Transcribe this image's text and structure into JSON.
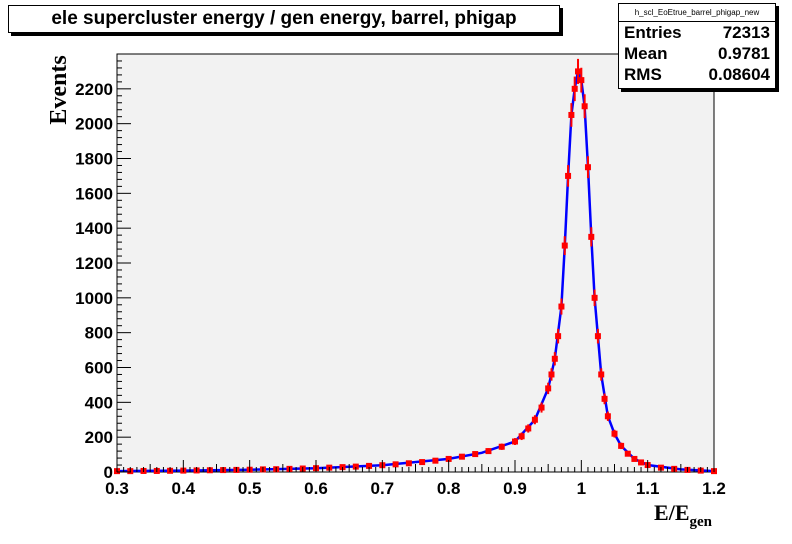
{
  "chart_data": {
    "type": "scatter",
    "title": "ele supercluster energy / gen energy, barrel, phigap",
    "xlabel": "E/E",
    "xlabel_sub": "gen",
    "ylabel": "Events",
    "xlim": [
      0.3,
      1.2
    ],
    "ylim": [
      0,
      2400
    ],
    "xticks": [
      "0.3",
      "0.4",
      "0.5",
      "0.6",
      "0.7",
      "0.8",
      "0.9",
      "1",
      "1.1",
      "1.2"
    ],
    "yticks": [
      "0",
      "200",
      "400",
      "600",
      "800",
      "1000",
      "1200",
      "1400",
      "1600",
      "1800",
      "2000",
      "2200"
    ],
    "grid": false,
    "colors": {
      "points": "#ff0000",
      "curve": "#0000ff",
      "frame_bg": "#f2f2f2"
    },
    "points": {
      "x": [
        0.3,
        0.32,
        0.34,
        0.36,
        0.38,
        0.4,
        0.42,
        0.44,
        0.46,
        0.48,
        0.5,
        0.52,
        0.54,
        0.56,
        0.58,
        0.6,
        0.62,
        0.64,
        0.66,
        0.68,
        0.7,
        0.72,
        0.74,
        0.76,
        0.78,
        0.8,
        0.82,
        0.84,
        0.86,
        0.88,
        0.9,
        0.91,
        0.92,
        0.93,
        0.94,
        0.95,
        0.955,
        0.96,
        0.965,
        0.97,
        0.975,
        0.98,
        0.985,
        0.99,
        0.995,
        1.0,
        1.005,
        1.01,
        1.015,
        1.02,
        1.025,
        1.03,
        1.035,
        1.04,
        1.05,
        1.06,
        1.07,
        1.08,
        1.09,
        1.1,
        1.12,
        1.14,
        1.16,
        1.18,
        1.2
      ],
      "y": [
        5,
        5,
        6,
        6,
        7,
        8,
        9,
        10,
        11,
        12,
        13,
        15,
        16,
        18,
        20,
        22,
        25,
        28,
        31,
        35,
        39,
        44,
        50,
        57,
        65,
        75,
        88,
        103,
        120,
        145,
        175,
        205,
        250,
        300,
        370,
        480,
        560,
        650,
        780,
        950,
        1300,
        1700,
        2050,
        2200,
        2300,
        2250,
        2100,
        1750,
        1350,
        1000,
        780,
        560,
        420,
        320,
        220,
        150,
        105,
        75,
        55,
        40,
        25,
        18,
        12,
        8,
        5
      ]
    },
    "curve": {
      "x": [
        0.3,
        0.4,
        0.5,
        0.6,
        0.7,
        0.8,
        0.85,
        0.9,
        0.93,
        0.95,
        0.96,
        0.97,
        0.975,
        0.98,
        0.985,
        0.99,
        0.995,
        1.0,
        1.005,
        1.01,
        1.015,
        1.02,
        1.025,
        1.03,
        1.04,
        1.05,
        1.06,
        1.08,
        1.1,
        1.15,
        1.2
      ],
      "y": [
        5,
        8,
        13,
        22,
        39,
        75,
        110,
        175,
        300,
        480,
        650,
        950,
        1300,
        1700,
        2050,
        2200,
        2300,
        2250,
        2100,
        1750,
        1350,
        1000,
        780,
        560,
        320,
        220,
        150,
        75,
        40,
        15,
        5
      ]
    }
  },
  "stats": {
    "name": "h_scl_EoEtrue_barrel_phigap_new",
    "rows": [
      {
        "label": "Entries",
        "value": "72313"
      },
      {
        "label": "Mean",
        "value": "0.9781"
      },
      {
        "label": "RMS",
        "value": "0.08604"
      }
    ]
  }
}
